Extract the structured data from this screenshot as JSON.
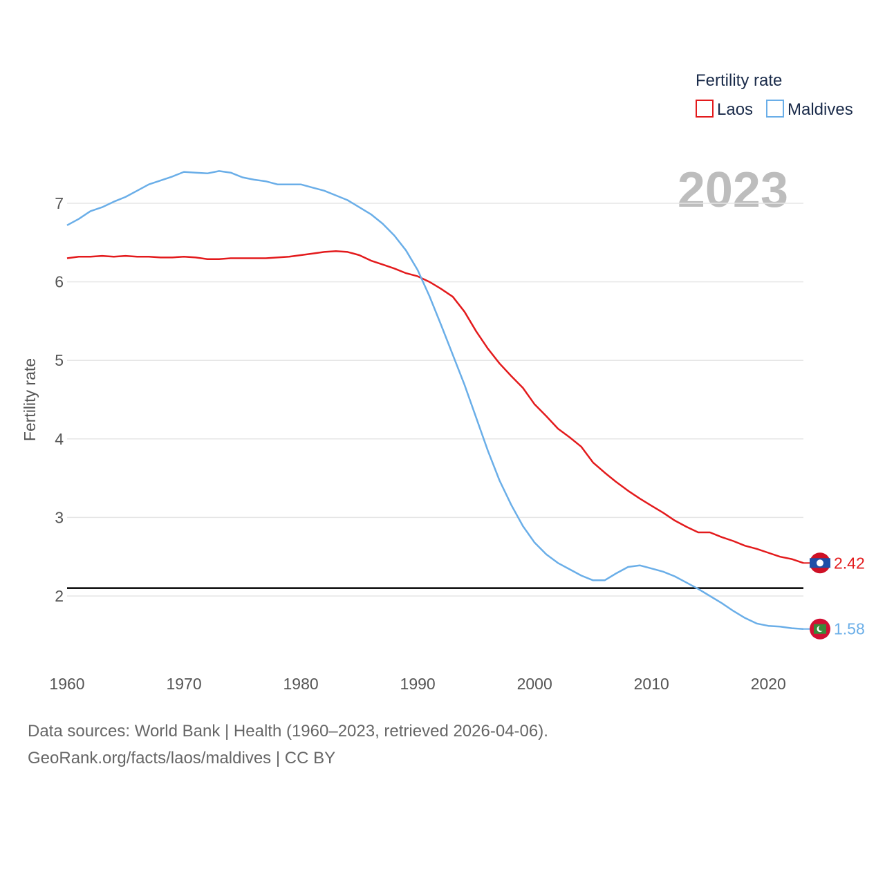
{
  "chart_data": {
    "type": "line",
    "title": "",
    "ylabel": "Fertility rate",
    "xlabel": "",
    "xlim": [
      1960,
      2023
    ],
    "ylim": [
      1.2,
      7.6
    ],
    "x_ticks": [
      1960,
      1970,
      1980,
      1990,
      2000,
      2010,
      2020
    ],
    "y_ticks": [
      2,
      3,
      4,
      5,
      6,
      7
    ],
    "current_year": "2023",
    "reference_line": 2.1,
    "legend": {
      "title": "Fertility rate",
      "position": "top-right"
    },
    "x": [
      1960,
      1961,
      1962,
      1963,
      1964,
      1965,
      1966,
      1967,
      1968,
      1969,
      1970,
      1971,
      1972,
      1973,
      1974,
      1975,
      1976,
      1977,
      1978,
      1979,
      1980,
      1981,
      1982,
      1983,
      1984,
      1985,
      1986,
      1987,
      1988,
      1989,
      1990,
      1991,
      1992,
      1993,
      1994,
      1995,
      1996,
      1997,
      1998,
      1999,
      2000,
      2001,
      2002,
      2003,
      2004,
      2005,
      2006,
      2007,
      2008,
      2009,
      2010,
      2011,
      2012,
      2013,
      2014,
      2015,
      2016,
      2017,
      2018,
      2019,
      2020,
      2021,
      2022,
      2023
    ],
    "series": [
      {
        "name": "Laos",
        "color": "#e31a1c",
        "end_label": "2.42",
        "flag": "laos-flag",
        "values": [
          6.3,
          6.32,
          6.32,
          6.33,
          6.32,
          6.33,
          6.32,
          6.32,
          6.31,
          6.31,
          6.32,
          6.31,
          6.29,
          6.29,
          6.3,
          6.3,
          6.3,
          6.3,
          6.31,
          6.32,
          6.34,
          6.36,
          6.38,
          6.39,
          6.38,
          6.34,
          6.27,
          6.22,
          6.17,
          6.11,
          6.07,
          6.0,
          5.91,
          5.81,
          5.62,
          5.37,
          5.15,
          4.96,
          4.8,
          4.65,
          4.44,
          4.29,
          4.13,
          4.02,
          3.9,
          3.7,
          3.57,
          3.45,
          3.34,
          3.24,
          3.15,
          3.06,
          2.96,
          2.88,
          2.81,
          2.81,
          2.75,
          2.7,
          2.64,
          2.6,
          2.55,
          2.5,
          2.47,
          2.42
        ]
      },
      {
        "name": "Maldives",
        "color": "#6aaee8",
        "end_label": "1.58",
        "flag": "maldives-flag",
        "values": [
          6.72,
          6.8,
          6.9,
          6.95,
          7.02,
          7.08,
          7.16,
          7.24,
          7.29,
          7.34,
          7.4,
          7.39,
          7.38,
          7.41,
          7.39,
          7.33,
          7.3,
          7.28,
          7.24,
          7.24,
          7.24,
          7.2,
          7.16,
          7.1,
          7.04,
          6.95,
          6.86,
          6.74,
          6.59,
          6.4,
          6.15,
          5.82,
          5.45,
          5.07,
          4.69,
          4.27,
          3.85,
          3.47,
          3.16,
          2.89,
          2.68,
          2.53,
          2.42,
          2.34,
          2.26,
          2.2,
          2.2,
          2.29,
          2.37,
          2.39,
          2.35,
          2.31,
          2.25,
          2.17,
          2.09,
          2.0,
          1.91,
          1.81,
          1.72,
          1.65,
          1.62,
          1.61,
          1.59,
          1.58
        ]
      }
    ]
  },
  "footer": {
    "line1": "Data sources: World Bank | Health (1960–2023, retrieved 2026-04-06).",
    "line2": "GeoRank.org/facts/laos/maldives | CC BY"
  }
}
